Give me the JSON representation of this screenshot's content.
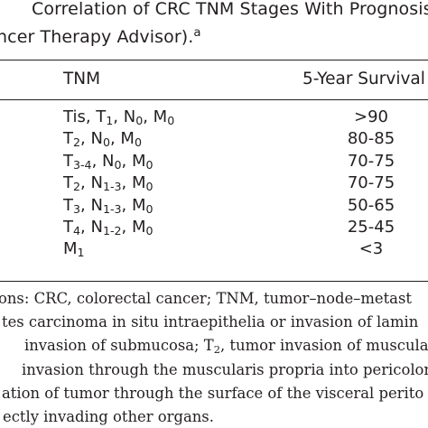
{
  "caption": {
    "line1": "Correlation of CRC TNM Stages With Prognosis",
    "line2_text": "ncer Therapy Advisor).",
    "line2_sup": "a"
  },
  "table": {
    "headers": {
      "tnm": "TNM",
      "survival": "5-Year Survival"
    },
    "rows": [
      {
        "tnm": [
          {
            "t": "Tis, T"
          },
          {
            "sub": "1"
          },
          {
            "t": ", N"
          },
          {
            "sub": "0"
          },
          {
            "t": ", M"
          },
          {
            "sub": "0"
          }
        ],
        "survival": ">90"
      },
      {
        "tnm": [
          {
            "t": "T"
          },
          {
            "sub": "2"
          },
          {
            "t": ", N"
          },
          {
            "sub": "0"
          },
          {
            "t": ", M"
          },
          {
            "sub": "0"
          }
        ],
        "survival": "80-85"
      },
      {
        "tnm": [
          {
            "t": "T"
          },
          {
            "sub": "3-4"
          },
          {
            "t": ", N"
          },
          {
            "sub": "0"
          },
          {
            "t": ", M"
          },
          {
            "sub": "0"
          }
        ],
        "survival": "70-75"
      },
      {
        "tnm": [
          {
            "t": "T"
          },
          {
            "sub": "2"
          },
          {
            "t": ", N"
          },
          {
            "sub": "1-3"
          },
          {
            "t": ", M"
          },
          {
            "sub": "0"
          }
        ],
        "survival": "70-75"
      },
      {
        "tnm": [
          {
            "t": "T"
          },
          {
            "sub": "3"
          },
          {
            "t": ", N"
          },
          {
            "sub": "1-3"
          },
          {
            "t": ", M"
          },
          {
            "sub": "0"
          }
        ],
        "survival": "50-65"
      },
      {
        "tnm": [
          {
            "t": "T"
          },
          {
            "sub": "4"
          },
          {
            "t": ", N"
          },
          {
            "sub": "1-2"
          },
          {
            "t": ", M"
          },
          {
            "sub": "0"
          }
        ],
        "survival": "25-45"
      },
      {
        "tnm": [
          {
            "t": "M"
          },
          {
            "sub": "1"
          }
        ],
        "survival": "<3"
      }
    ]
  },
  "footnotes": [
    [
      {
        "t": "ons: CRC, colorectal cancer; TNM, tumor–node–metast"
      }
    ],
    [
      {
        "t": "tes carcinoma in situ intraepithelia or invasion of lamin"
      }
    ],
    [
      {
        "t": " invasion of submucosa; T"
      },
      {
        "sub": "2"
      },
      {
        "t": ", tumor invasion of muscular"
      }
    ],
    [
      {
        "t": " invasion through the muscularis propria into pericolorec"
      }
    ],
    [
      {
        "t": "ation of tumor through the surface of the visceral perito"
      }
    ],
    [
      {
        "t": "ectly invading other organs."
      }
    ]
  ]
}
